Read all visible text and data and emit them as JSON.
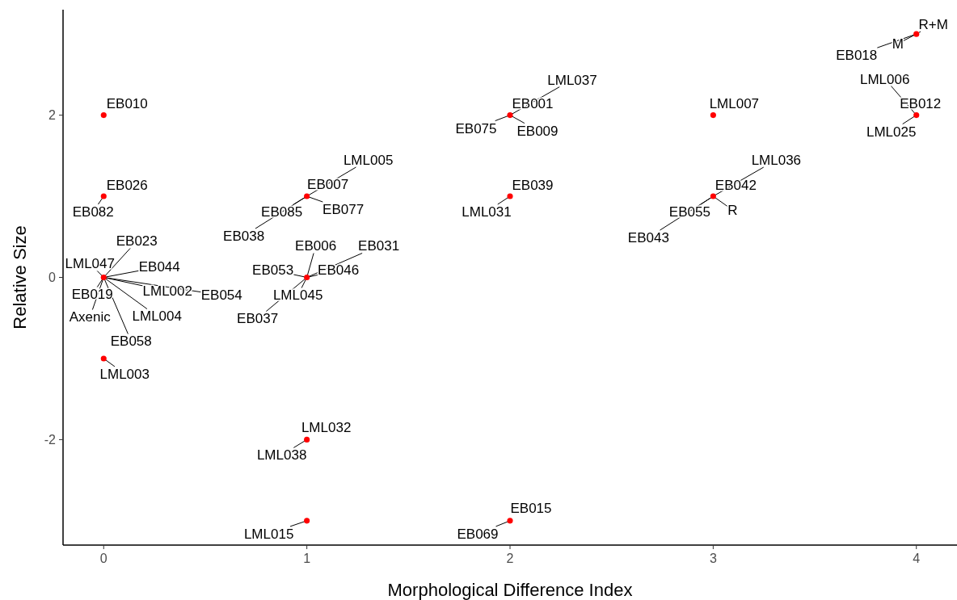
{
  "chart_data": {
    "type": "scatter",
    "xlabel": "Morphological Difference Index",
    "ylabel": "Relative Size",
    "x": [
      0,
      0,
      0,
      0,
      1,
      1,
      1,
      1,
      2,
      2,
      2,
      3,
      3,
      4,
      4
    ],
    "values": [
      2,
      1,
      0,
      -1,
      1,
      0,
      -2,
      -3,
      2,
      1,
      -3,
      2,
      1,
      3,
      2
    ],
    "color": "#ff0000",
    "marker": "circle",
    "xlim": [
      -0.2,
      4.2
    ],
    "xticks": [
      0,
      1,
      2,
      3,
      4
    ],
    "ylim": [
      -3.3,
      3.3
    ],
    "yticks": [
      -2,
      0,
      2
    ],
    "grid": false,
    "annotations": [
      {
        "text": "EB010",
        "x": 0,
        "y": 2
      },
      {
        "text": "EB026",
        "x": 0,
        "y": 1
      },
      {
        "text": "EB082",
        "x": 0,
        "y": 1
      },
      {
        "text": "EB023",
        "x": 0,
        "y": 0
      },
      {
        "text": "LML047",
        "x": 0,
        "y": 0
      },
      {
        "text": "EB044",
        "x": 0,
        "y": 0
      },
      {
        "text": "EB019",
        "x": 0,
        "y": 0
      },
      {
        "text": "LML002",
        "x": 0,
        "y": 0
      },
      {
        "text": "EB054",
        "x": 0,
        "y": 0
      },
      {
        "text": "Axenic",
        "x": 0,
        "y": 0
      },
      {
        "text": "LML004",
        "x": 0,
        "y": 0
      },
      {
        "text": "EB058",
        "x": 0,
        "y": 0
      },
      {
        "text": "LML003",
        "x": 0,
        "y": -1
      },
      {
        "text": "EB007",
        "x": 1,
        "y": 1
      },
      {
        "text": "LML005",
        "x": 1,
        "y": 1
      },
      {
        "text": "EB085",
        "x": 1,
        "y": 1
      },
      {
        "text": "EB077",
        "x": 1,
        "y": 1
      },
      {
        "text": "EB038",
        "x": 1,
        "y": 1
      },
      {
        "text": "EB006",
        "x": 1,
        "y": 0
      },
      {
        "text": "EB031",
        "x": 1,
        "y": 0
      },
      {
        "text": "EB053",
        "x": 1,
        "y": 0
      },
      {
        "text": "EB046",
        "x": 1,
        "y": 0
      },
      {
        "text": "LML045",
        "x": 1,
        "y": 0
      },
      {
        "text": "EB037",
        "x": 1,
        "y": 0
      },
      {
        "text": "LML032",
        "x": 1,
        "y": -2
      },
      {
        "text": "LML038",
        "x": 1,
        "y": -2
      },
      {
        "text": "LML015",
        "x": 1,
        "y": -3
      },
      {
        "text": "EB001",
        "x": 2,
        "y": 2
      },
      {
        "text": "LML037",
        "x": 2,
        "y": 2
      },
      {
        "text": "EB075",
        "x": 2,
        "y": 2
      },
      {
        "text": "EB009",
        "x": 2,
        "y": 2
      },
      {
        "text": "EB039",
        "x": 2,
        "y": 1
      },
      {
        "text": "LML031",
        "x": 2,
        "y": 1
      },
      {
        "text": "EB015",
        "x": 2,
        "y": -3
      },
      {
        "text": "EB069",
        "x": 2,
        "y": -3
      },
      {
        "text": "LML007",
        "x": 3,
        "y": 2
      },
      {
        "text": "LML036",
        "x": 3,
        "y": 1
      },
      {
        "text": "EB042",
        "x": 3,
        "y": 1
      },
      {
        "text": "EB055",
        "x": 3,
        "y": 1
      },
      {
        "text": "R",
        "x": 3,
        "y": 1
      },
      {
        "text": "EB043",
        "x": 3,
        "y": 1
      },
      {
        "text": "R+M",
        "x": 4,
        "y": 3
      },
      {
        "text": "M",
        "x": 4,
        "y": 3
      },
      {
        "text": "EB018",
        "x": 4,
        "y": 3
      },
      {
        "text": "LML006",
        "x": 4,
        "y": 2
      },
      {
        "text": "EB012",
        "x": 4,
        "y": 2
      },
      {
        "text": "LML025",
        "x": 4,
        "y": 2
      }
    ]
  }
}
